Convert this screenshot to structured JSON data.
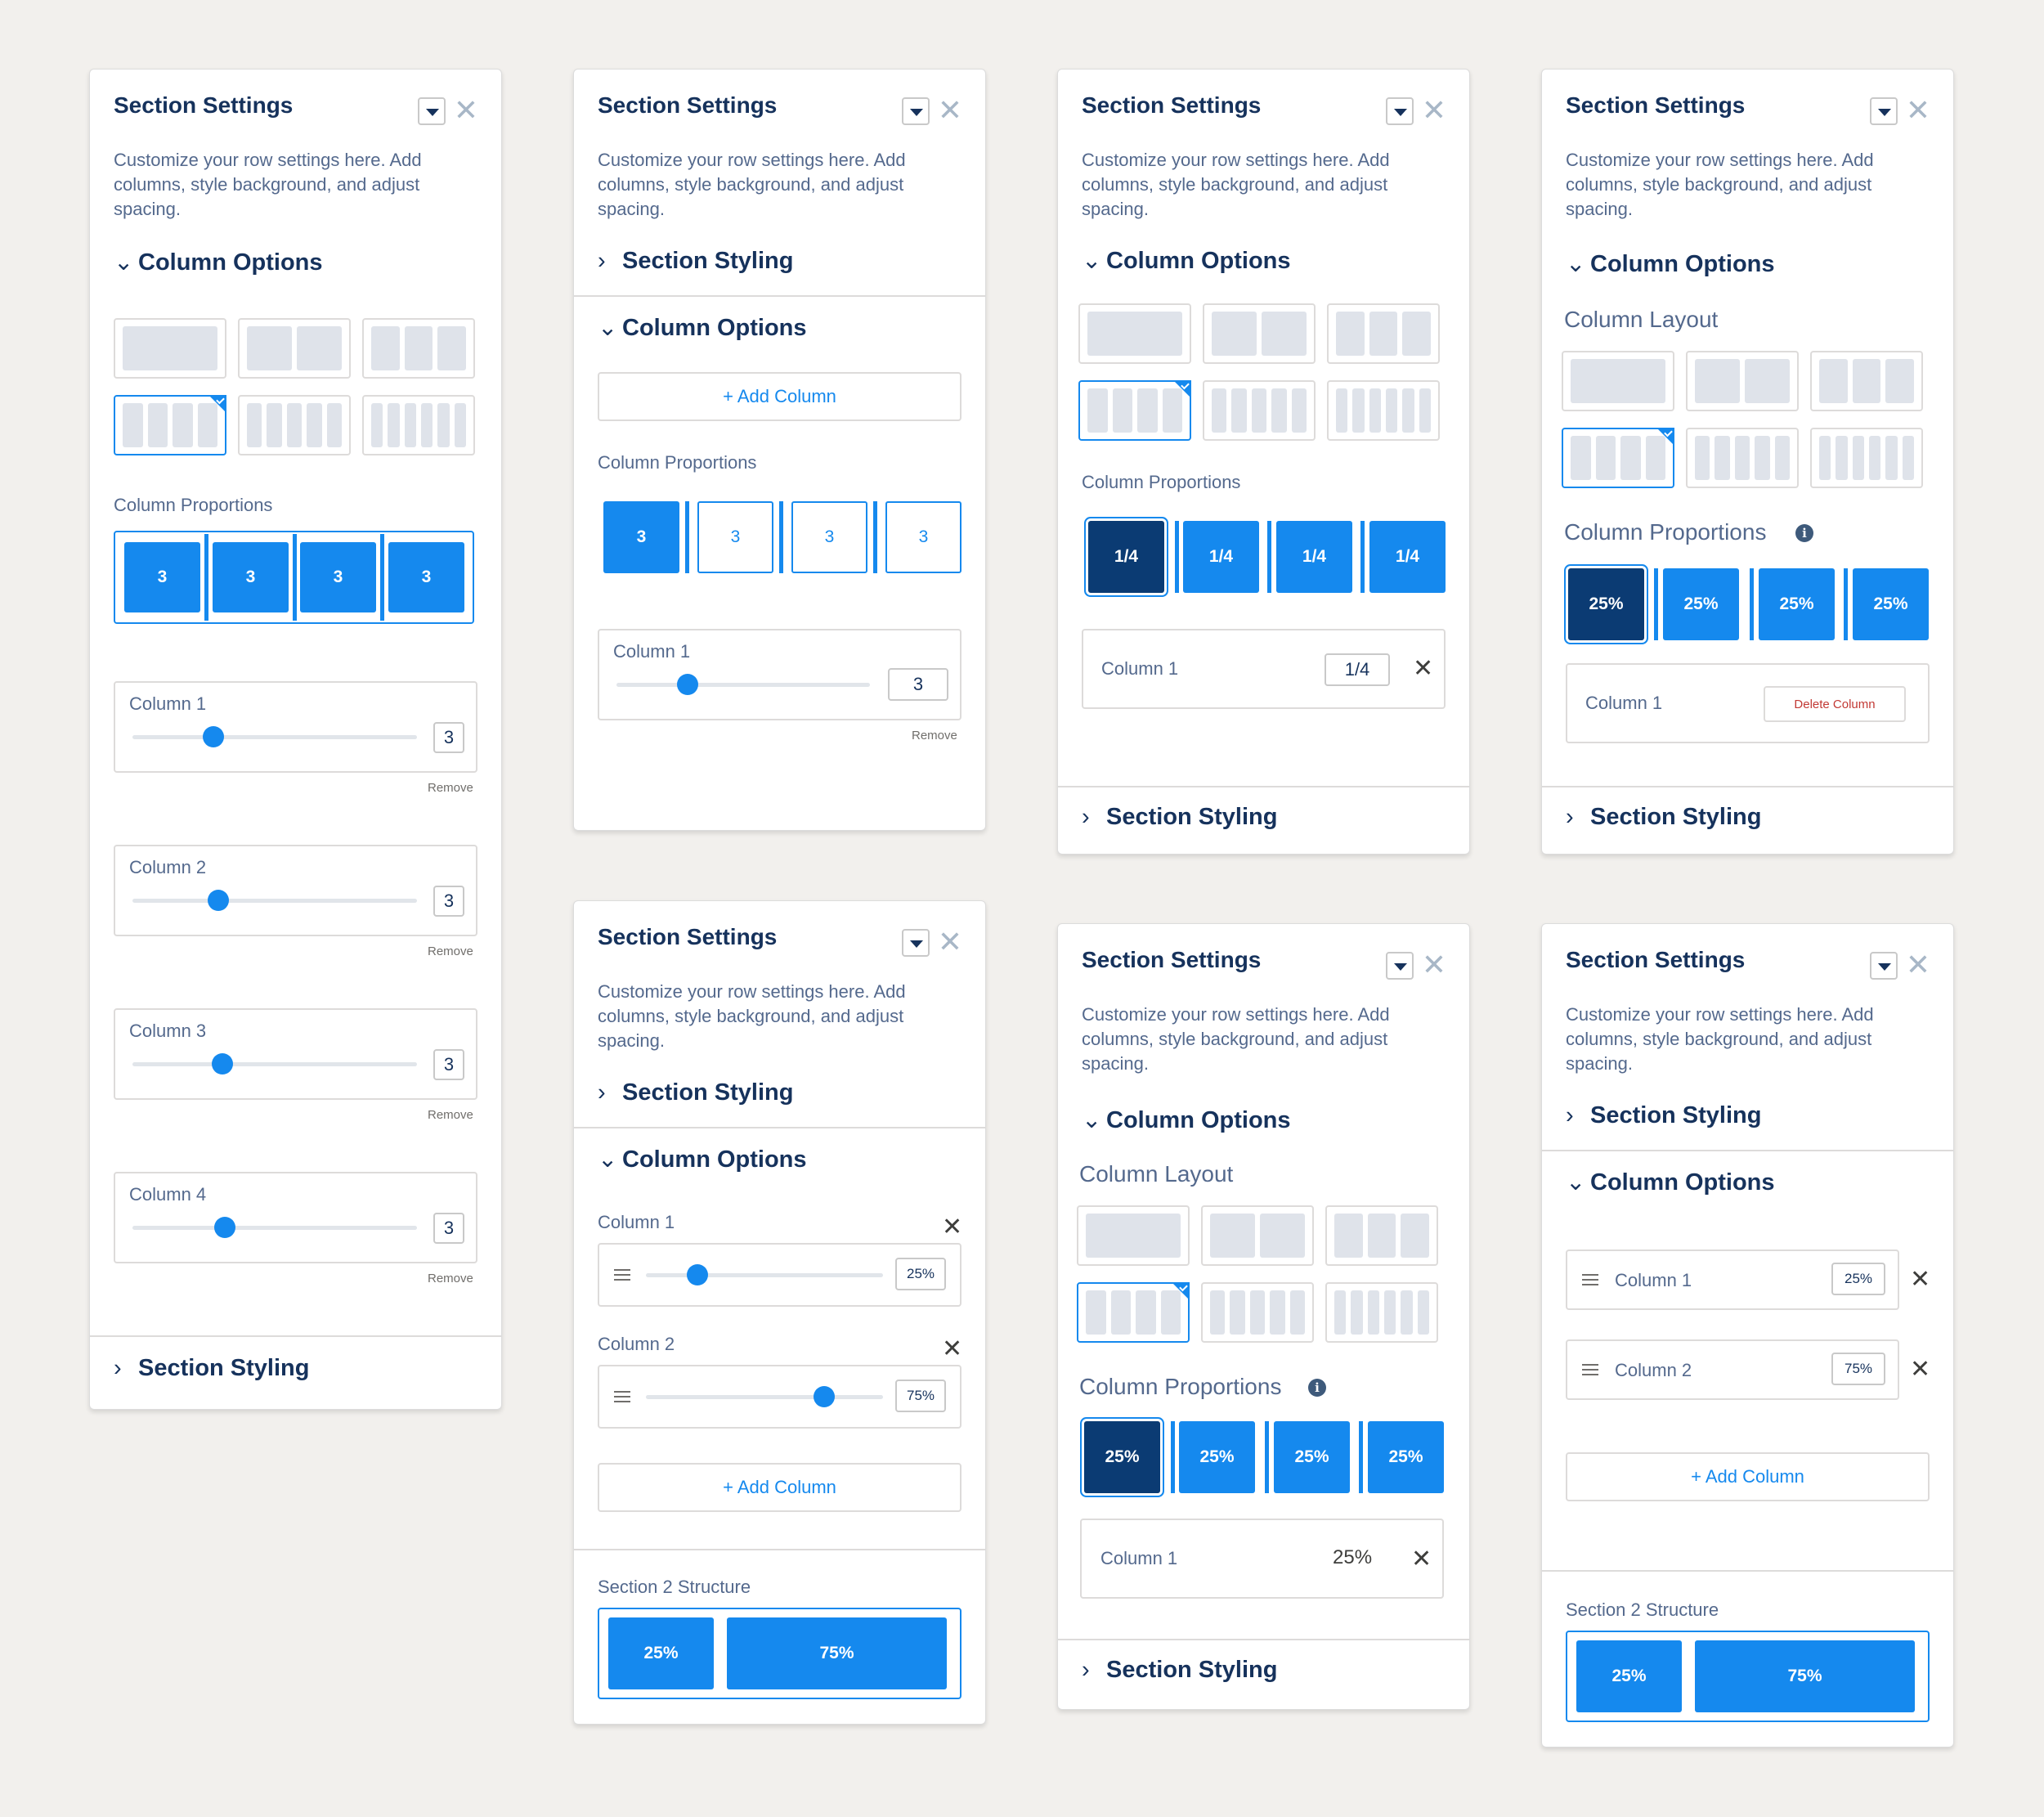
{
  "common": {
    "title": "Section Settings",
    "description": "Customize your row settings here. Add columns, style background, and adjust spacing.",
    "column_options": "Column Options",
    "section_styling": "Section Styling",
    "column_proportions": "Column Proportions",
    "column_layout": "Column Layout",
    "add_column": "+ Add Column",
    "remove": "Remove",
    "delete_column": "Delete Column",
    "section2_structure": "Section 2 Structure",
    "close_glyph": "✕",
    "expanded_glyph": "⌄",
    "collapsed_glyph": "›"
  },
  "p1": {
    "proportions": [
      "3",
      "3",
      "3",
      "3"
    ],
    "columns": [
      {
        "label": "Column 1",
        "value": "3",
        "level": 0.28
      },
      {
        "label": "Column 2",
        "value": "3",
        "level": 0.3
      },
      {
        "label": "Column 3",
        "value": "3",
        "level": 0.32
      },
      {
        "label": "Column 4",
        "value": "3",
        "level": 0.33
      }
    ]
  },
  "p2": {
    "proportions": [
      "3",
      "3",
      "3",
      "3"
    ],
    "column": {
      "label": "Column 1",
      "value": "3",
      "level": 0.28
    }
  },
  "p3": {
    "proportions": [
      "1/4",
      "1/4",
      "1/4",
      "1/4"
    ],
    "column": {
      "label": "Column 1",
      "value": "1/4"
    }
  },
  "p4": {
    "proportions": [
      "25%",
      "25%",
      "25%",
      "25%"
    ],
    "column": {
      "label": "Column 1"
    }
  },
  "p5": {
    "columns": [
      {
        "label": "Column 1",
        "value": "25%",
        "level": 0.22
      },
      {
        "label": "Column 2",
        "value": "75%",
        "level": 0.75
      }
    ],
    "structure": [
      "25%",
      "75%"
    ]
  },
  "p6": {
    "proportions": [
      "25%",
      "25%",
      "25%",
      "25%"
    ],
    "column": {
      "label": "Column 1",
      "value": "25%"
    }
  },
  "p7": {
    "columns": [
      {
        "label": "Column 1",
        "value": "25%"
      },
      {
        "label": "Column 2",
        "value": "75%"
      }
    ],
    "structure": [
      "25%",
      "75%"
    ]
  },
  "colors": {
    "accent": "#1589ee",
    "selected_dark": "#0b3b73",
    "text": "#16325c",
    "danger": "#c23934"
  }
}
